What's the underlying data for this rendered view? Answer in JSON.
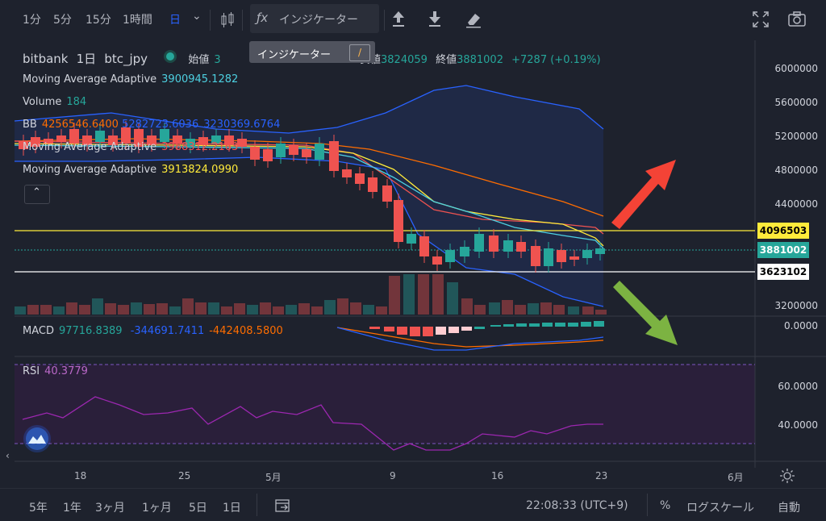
{
  "toolbar": {
    "intervals": [
      "1分",
      "5分",
      "15分",
      "1時間",
      "日"
    ],
    "active_interval": "日",
    "indicator_label": "インジケーター",
    "tooltip_text": "インジケーター",
    "tooltip_key": "/"
  },
  "legend": {
    "symbol": "bitbank",
    "interval": "1日",
    "pair": "btc_jpy",
    "open_label": "始値",
    "open_value_partial": "3",
    "low_label_partial": "安値",
    "low_value": "3824059",
    "close_label": "終値",
    "close_value": "3881002",
    "change": "+7287 (+0.19%)",
    "ma1_name": "Moving Average Adaptive",
    "ma1_value": "3900945.1282",
    "volume_name": "Volume",
    "volume_value": "184",
    "bb_name": "BB",
    "bb_values": [
      "4256546.6400",
      "5282723.6036",
      "3230369.6764"
    ],
    "ma2_name": "Moving Average Adaptive",
    "ma2_value": "3988312.2163",
    "ma3_name": "Moving Average Adaptive",
    "ma3_value": "3913824.0990",
    "macd_name": "MACD",
    "macd_values": [
      "97716.8389",
      "-344691.7411",
      "-442408.5800"
    ],
    "rsi_name": "RSI",
    "rsi_value": "40.3779"
  },
  "price_axis": {
    "labels": [
      "6000000",
      "5600000",
      "5200000",
      "4800000",
      "4400000",
      "3200000"
    ],
    "macd_labels": [
      "0.0000"
    ],
    "rsi_labels": [
      "60.0000",
      "40.0000"
    ],
    "tags": [
      {
        "value": "4096503",
        "bg": "#ffeb3b",
        "fg": "#000000"
      },
      {
        "value": "3881002",
        "bg": "#26a69a",
        "fg": "#ffffff"
      },
      {
        "value": "3623102",
        "bg": "#ffffff",
        "fg": "#000000"
      }
    ]
  },
  "time_axis": {
    "labels": [
      "18",
      "25",
      "5月",
      "9",
      "16",
      "23",
      "6月"
    ]
  },
  "bottom_bar": {
    "ranges": [
      "5年",
      "1年",
      "3ヶ月",
      "1ヶ月",
      "5日",
      "1日"
    ],
    "clock": "22:08:33 (UTC+9)",
    "percent": "%",
    "log_scale": "ログスケール",
    "auto": "自動"
  },
  "colors": {
    "up": "#26a69a",
    "down": "#ef5350",
    "ma1": "#4dd0e1",
    "ma2": "#ef5350",
    "ma3": "#ffeb3b",
    "bb_basis": "#ff6d00",
    "bb_band": "#2962ff",
    "macd": "#2962ff",
    "signal": "#ff6d00",
    "rsi": "#9c27b0",
    "up_arrow": "#f44336",
    "down_arrow": "#7cb342"
  }
}
